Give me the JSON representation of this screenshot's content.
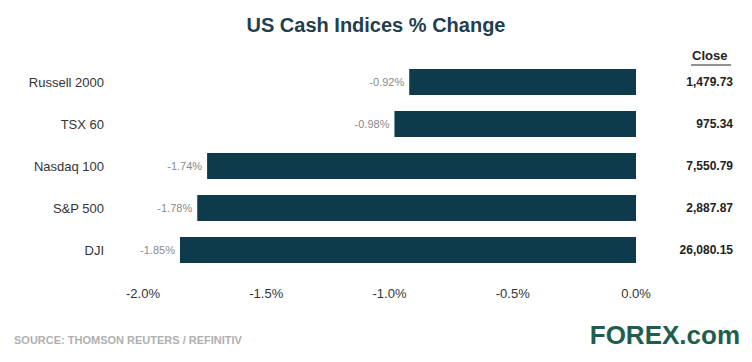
{
  "chart_data": {
    "type": "bar",
    "orientation": "horizontal",
    "title": "US Cash Indices % Change",
    "categories": [
      "Russell 2000",
      "TSX 60",
      "Nasdaq 100",
      "S&P 500",
      "DJI"
    ],
    "values": [
      -0.92,
      -0.98,
      -1.74,
      -1.78,
      -1.85
    ],
    "value_labels": [
      "-0.92%",
      "-0.98%",
      "-1.74%",
      "-1.78%",
      "-1.85%"
    ],
    "data_labels": true,
    "color": "#0d3b4b",
    "xlim": [
      -2,
      0
    ],
    "xticks": [
      {
        "value": -2,
        "label": "-2.0%"
      },
      {
        "value": -1.5,
        "label": "-1.5%"
      },
      {
        "value": -1,
        "label": "-1.0%"
      },
      {
        "value": -0.5,
        "label": "-0.5%"
      },
      {
        "value": 0,
        "label": "0.0%"
      }
    ],
    "grid": false,
    "close": {
      "header": "Close",
      "labels": [
        "1,479.73",
        "975.34",
        "7,550.79",
        "2,887.87",
        "26,080.15"
      ]
    },
    "source": "SOURCE: THOMSON REUTERS / REFINITIV",
    "logo": "FOREX.com"
  }
}
